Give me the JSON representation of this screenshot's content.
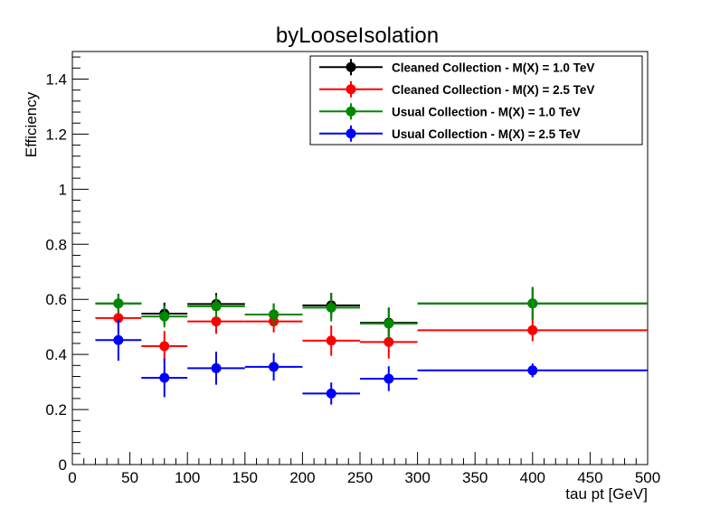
{
  "chart_data": {
    "type": "scatter",
    "title": "byLooseIsolation",
    "xlabel": "tau pt [GeV]",
    "ylabel": "Efficiency",
    "xlim": [
      0,
      500
    ],
    "ylim": [
      0,
      1.5
    ],
    "x_ticks": [
      0,
      50,
      100,
      150,
      200,
      250,
      300,
      350,
      400,
      450,
      500
    ],
    "y_ticks": [
      0,
      0.2,
      0.4,
      0.6,
      0.8,
      1,
      1.2,
      1.4
    ],
    "x_tick_labels": [
      "0",
      "50",
      "100",
      "150",
      "200",
      "250",
      "300",
      "350",
      "400",
      "450",
      "500"
    ],
    "y_tick_labels": [
      "0",
      "0.2",
      "0.4",
      "0.6",
      "0.8",
      "1",
      "1.2",
      "1.4"
    ],
    "grid": false,
    "legend_position": "top-right",
    "bins": [
      [
        20,
        60
      ],
      [
        60,
        100
      ],
      [
        100,
        150
      ],
      [
        150,
        200
      ],
      [
        200,
        250
      ],
      [
        250,
        300
      ],
      [
        300,
        500
      ]
    ],
    "x_centers": [
      40,
      80,
      125,
      175,
      225,
      275,
      400
    ],
    "series": [
      {
        "name": "Cleaned Collection - M(X) = 1.0 TeV",
        "color": "#000000",
        "values": [
          0.585,
          0.548,
          0.583,
          0.545,
          0.578,
          0.515,
          0.585
        ],
        "errors": [
          0.035,
          0.04,
          0.04,
          0.04,
          0.045,
          0.055,
          0.06
        ]
      },
      {
        "name": "Cleaned Collection - M(X) = 2.5 TeV",
        "color": "#ff0000",
        "values": [
          0.532,
          0.43,
          0.52,
          0.52,
          0.45,
          0.445,
          0.488
        ],
        "errors": [
          0.05,
          0.055,
          0.045,
          0.04,
          0.055,
          0.06,
          0.04
        ]
      },
      {
        "name": "Usual Collection - M(X) = 1.0 TeV",
        "color": "#008800",
        "values": [
          0.585,
          0.538,
          0.575,
          0.545,
          0.57,
          0.512,
          0.585
        ],
        "errors": [
          0.035,
          0.04,
          0.04,
          0.04,
          0.05,
          0.055,
          0.06
        ]
      },
      {
        "name": "Usual Collection - M(X) = 2.5 TeV",
        "color": "#0000ff",
        "values": [
          0.452,
          0.315,
          0.35,
          0.355,
          0.258,
          0.312,
          0.342
        ],
        "errors": [
          0.075,
          0.07,
          0.06,
          0.05,
          0.04,
          0.045,
          0.025
        ]
      }
    ]
  }
}
